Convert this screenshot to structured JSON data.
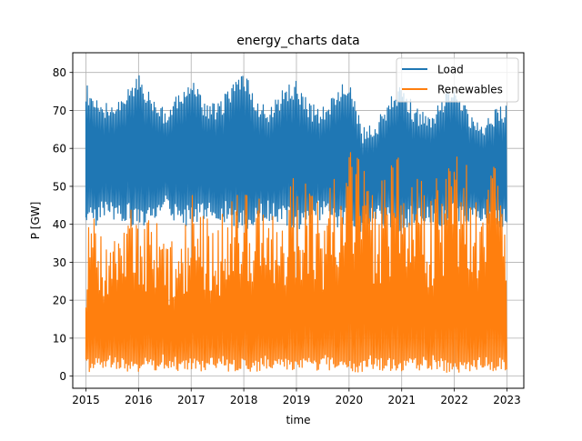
{
  "chart_data": {
    "type": "line",
    "title": "energy_charts data",
    "xlabel": "time",
    "ylabel": "P [GW]",
    "xlim": [
      2014.75,
      2023.32
    ],
    "ylim": [
      -3.2,
      85.2
    ],
    "x_ticks": [
      2015,
      2016,
      2017,
      2018,
      2019,
      2020,
      2021,
      2022,
      2023
    ],
    "y_ticks": [
      0,
      10,
      20,
      30,
      40,
      50,
      60,
      70,
      80
    ],
    "grid": true,
    "legend_position": "top-right",
    "series": [
      {
        "name": "Load",
        "color": "#1f77b4",
        "x": [
          2015.0,
          2015.25,
          2015.5,
          2015.75,
          2016.0,
          2016.25,
          2016.5,
          2016.75,
          2017.0,
          2017.25,
          2017.5,
          2017.75,
          2018.0,
          2018.25,
          2018.5,
          2018.75,
          2019.0,
          2019.25,
          2019.5,
          2019.75,
          2020.0,
          2020.25,
          2020.5,
          2020.75,
          2021.0,
          2021.25,
          2021.5,
          2021.75,
          2022.0,
          2022.25,
          2022.5,
          2022.75,
          2023.0
        ],
        "max": [
          77,
          73,
          72,
          75,
          80,
          74,
          71,
          75,
          79,
          73,
          72,
          76,
          81,
          73,
          71,
          76,
          78,
          72,
          71,
          76,
          78,
          66,
          67,
          73,
          77,
          71,
          69,
          73,
          78,
          70,
          66,
          70,
          72
        ],
        "min": [
          38,
          40,
          41,
          40,
          39,
          40,
          42,
          40,
          39,
          40,
          41,
          40,
          38,
          40,
          41,
          40,
          38,
          40,
          41,
          39,
          40,
          36,
          40,
          39,
          38,
          40,
          40,
          39,
          40,
          40,
          40,
          38,
          40
        ]
      },
      {
        "name": "Renewables",
        "color": "#ff7f0e",
        "x": [
          2015.0,
          2015.25,
          2015.5,
          2015.75,
          2016.0,
          2016.25,
          2016.5,
          2016.75,
          2017.0,
          2017.25,
          2017.5,
          2017.75,
          2018.0,
          2018.25,
          2018.5,
          2018.75,
          2019.0,
          2019.25,
          2019.5,
          2019.75,
          2020.0,
          2020.25,
          2020.5,
          2020.75,
          2021.0,
          2021.25,
          2021.5,
          2021.75,
          2022.0,
          2022.25,
          2022.5,
          2022.75,
          2023.0
        ],
        "max": [
          38,
          44,
          37,
          43,
          45,
          42,
          38,
          40,
          48,
          45,
          42,
          47,
          53,
          48,
          44,
          50,
          55,
          50,
          46,
          53,
          60,
          56,
          48,
          55,
          62,
          58,
          48,
          55,
          60,
          56,
          48,
          58,
          35
        ],
        "min": [
          1,
          1,
          2,
          1,
          1,
          1,
          2,
          1,
          1,
          1,
          2,
          1,
          1,
          1,
          2,
          1,
          1,
          1,
          2,
          1,
          1,
          1,
          2,
          1,
          1,
          1,
          2,
          1,
          1,
          1,
          2,
          1,
          1
        ]
      }
    ]
  }
}
